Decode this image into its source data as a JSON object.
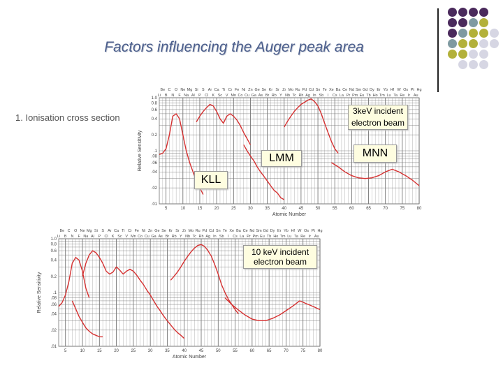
{
  "slide": {
    "title": "Factors influencing the Auger peak area",
    "subtitle": "1. Ionisation cross section"
  },
  "decor": {
    "colors": [
      "#4a2a5c",
      "#7f9aa1",
      "#b3b13a",
      "#d6d6e3"
    ],
    "dots": [
      [
        0,
        0,
        0,
        0,
        -1
      ],
      [
        0,
        0,
        1,
        2,
        -1
      ],
      [
        0,
        1,
        2,
        2,
        3
      ],
      [
        1,
        2,
        2,
        3,
        3
      ],
      [
        2,
        2,
        3,
        3,
        -1
      ],
      [
        -1,
        3,
        3,
        3,
        -1
      ]
    ]
  },
  "charts": {
    "top": {
      "annotation": "3keV incident electron beam",
      "shells": [
        "LMM",
        "MNN",
        "KLL"
      ]
    },
    "bottom": {
      "annotation": "10 keV incident electron beam"
    }
  },
  "chart_data": [
    {
      "type": "line",
      "xlabel": "Atomic Number",
      "ylabel": "Relative Sensitivity",
      "xticks": [
        "5",
        "10",
        "15",
        "20",
        "25",
        "30",
        "35",
        "40",
        "45",
        "50",
        "55",
        "60",
        "65",
        "70",
        "75",
        "80"
      ],
      "yticks": [
        ".01",
        ".02",
        ".04",
        ".06",
        ".08",
        ".1",
        "0.2",
        "0.4",
        "0.6",
        "0.8",
        "1.0"
      ],
      "yscale": "log",
      "xlim": [
        3,
        80
      ],
      "ylim": [
        0.01,
        1.0
      ],
      "elements_row1": [
        "Be",
        "C",
        "O",
        "Ne",
        "Mg",
        "Si",
        "S",
        "Ar",
        "Ca",
        "Ti",
        "Cr",
        "Fe",
        "Ni",
        "Zn",
        "Ge",
        "Se",
        "Kr",
        "Sr",
        "Zr",
        "Mo",
        "Ru",
        "Pd",
        "Cd",
        "Sn",
        "Te",
        "Xe",
        "Ba",
        "Ce",
        "Nd",
        "Sm",
        "Gd",
        "Dy",
        "Er",
        "Yb",
        "Hf",
        "W",
        "Os",
        "Pt",
        "Hg"
      ],
      "elements_row2": [
        "Li",
        "B",
        "N",
        "F",
        "Na",
        "Al",
        "P",
        "Cl",
        "K",
        "Sc",
        "V",
        "Mn",
        "Co",
        "Cu",
        "Ga",
        "As",
        "Br",
        "Rb",
        "Y",
        "Nb",
        "Tc",
        "Rh",
        "Ag",
        "In",
        "Sb",
        "I",
        "Cs",
        "La",
        "Pr",
        "Pm",
        "Eu",
        "Tb",
        "Ho",
        "Tm",
        "Lu",
        "Ta",
        "Re",
        "Ir",
        "Au"
      ],
      "series": [
        {
          "x": [
            3,
            4,
            5,
            6,
            7,
            8,
            9,
            10,
            11,
            12,
            13,
            14,
            15,
            16
          ],
          "y": [
            0.085,
            0.09,
            0.11,
            0.2,
            0.45,
            0.5,
            0.4,
            0.2,
            0.1,
            0.06,
            0.04,
            0.028,
            0.02,
            0.015
          ]
        },
        {
          "x": [
            14,
            15,
            16,
            17,
            18,
            19,
            20,
            21,
            22,
            23,
            24,
            25,
            26,
            27,
            28,
            29,
            30
          ],
          "y": [
            0.35,
            0.45,
            0.55,
            0.65,
            0.75,
            0.7,
            0.55,
            0.4,
            0.33,
            0.45,
            0.5,
            0.45,
            0.38,
            0.3,
            0.22,
            0.17,
            0.13
          ]
        },
        {
          "x": [
            28,
            29,
            30,
            31,
            32,
            33,
            34,
            35,
            36,
            37,
            38,
            39,
            40
          ],
          "y": [
            0.13,
            0.1,
            0.08,
            0.065,
            0.05,
            0.04,
            0.033,
            0.027,
            0.022,
            0.018,
            0.016,
            0.013,
            0.012
          ]
        },
        {
          "x": [
            40,
            41,
            42,
            43,
            44,
            45,
            46,
            47,
            48,
            49,
            50,
            51,
            52,
            53,
            54,
            55,
            56
          ],
          "y": [
            0.28,
            0.36,
            0.45,
            0.55,
            0.65,
            0.75,
            0.82,
            0.9,
            0.95,
            0.85,
            0.7,
            0.5,
            0.33,
            0.22,
            0.15,
            0.11,
            0.09
          ]
        },
        {
          "x": [
            54,
            56,
            58,
            60,
            62,
            64,
            66,
            68,
            70,
            72,
            74,
            76,
            78,
            80
          ],
          "y": [
            0.06,
            0.05,
            0.04,
            0.034,
            0.031,
            0.03,
            0.031,
            0.034,
            0.04,
            0.045,
            0.04,
            0.034,
            0.028,
            0.022
          ]
        }
      ]
    },
    {
      "type": "line",
      "xlabel": "Atomic Number",
      "ylabel": "Relative Sensitivity",
      "xticks": [
        "5",
        "10",
        "15",
        "20",
        "25",
        "30",
        "35",
        "40",
        "45",
        "50",
        "55",
        "60",
        "65",
        "70",
        "75",
        "80"
      ],
      "yticks": [
        ".01",
        ".02",
        ".04",
        ".06",
        ".08",
        ".1",
        "0.2",
        "0.4",
        "0.6",
        "0.8",
        "1.0"
      ],
      "yscale": "log",
      "xlim": [
        3,
        80
      ],
      "ylim": [
        0.01,
        1.0
      ],
      "elements_row1": [
        "Be",
        "C",
        "O",
        "Ne",
        "Mg",
        "Si",
        "S",
        "Ar",
        "Ca",
        "Ti",
        "Cr",
        "Fe",
        "Ni",
        "Zn",
        "Ge",
        "Se",
        "Kr",
        "Sr",
        "Zr",
        "Mo",
        "Ru",
        "Pd",
        "Cd",
        "Sn",
        "Te",
        "Xe",
        "Ba",
        "Ce",
        "Nd",
        "Sm",
        "Gd",
        "Dy",
        "Er",
        "Yb",
        "Hf",
        "W",
        "Os",
        "Pt",
        "Hg"
      ],
      "elements_row2": [
        "Li",
        "B",
        "N",
        "F",
        "Na",
        "Al",
        "P",
        "Cl",
        "K",
        "Sc",
        "V",
        "Mn",
        "Co",
        "Cu",
        "Ga",
        "As",
        "Br",
        "Rb",
        "Y",
        "Nb",
        "Tc",
        "Rh",
        "Ag",
        "In",
        "Sb",
        "I",
        "Cs",
        "La",
        "Pr",
        "Pm",
        "Eu",
        "Tb",
        "Ho",
        "Tm",
        "Lu",
        "Ta",
        "Re",
        "Ir",
        "Au"
      ],
      "series": [
        {
          "x": [
            3,
            4,
            5,
            6,
            7,
            8,
            9,
            10,
            11,
            12
          ],
          "y": [
            0.055,
            0.065,
            0.09,
            0.16,
            0.35,
            0.45,
            0.4,
            0.25,
            0.12,
            0.08
          ]
        },
        {
          "x": [
            7,
            8,
            9,
            10,
            11,
            12,
            13,
            14,
            15,
            16
          ],
          "y": [
            0.07,
            0.05,
            0.036,
            0.028,
            0.022,
            0.019,
            0.017,
            0.016,
            0.015,
            0.015
          ]
        },
        {
          "x": [
            10,
            11,
            12,
            13,
            14,
            15,
            16,
            17,
            18,
            19,
            20,
            21,
            22,
            23,
            24,
            25
          ],
          "y": [
            0.2,
            0.35,
            0.5,
            0.6,
            0.55,
            0.45,
            0.35,
            0.25,
            0.22,
            0.24,
            0.3,
            0.26,
            0.22,
            0.25,
            0.27,
            0.25
          ]
        },
        {
          "x": [
            25,
            26,
            27,
            28,
            29,
            30,
            31,
            32,
            33,
            34,
            35,
            36,
            37,
            38,
            39,
            40
          ],
          "y": [
            0.25,
            0.21,
            0.17,
            0.14,
            0.11,
            0.09,
            0.07,
            0.055,
            0.045,
            0.036,
            0.03,
            0.025,
            0.021,
            0.018,
            0.016,
            0.014
          ]
        },
        {
          "x": [
            36,
            37,
            38,
            39,
            40,
            41,
            42,
            43,
            44,
            45,
            46,
            47,
            48,
            49,
            50,
            51,
            52,
            53,
            54,
            55,
            56
          ],
          "y": [
            0.17,
            0.2,
            0.24,
            0.3,
            0.38,
            0.47,
            0.57,
            0.67,
            0.75,
            0.78,
            0.72,
            0.6,
            0.47,
            0.33,
            0.22,
            0.14,
            0.1,
            0.075,
            0.06,
            0.048,
            0.04
          ]
        },
        {
          "x": [
            52,
            54,
            56,
            58,
            60,
            62,
            64,
            66,
            68,
            70,
            72,
            74,
            76,
            78,
            80
          ],
          "y": [
            0.08,
            0.06,
            0.047,
            0.038,
            0.032,
            0.03,
            0.03,
            0.033,
            0.038,
            0.046,
            0.056,
            0.07,
            0.062,
            0.055,
            0.048
          ]
        }
      ]
    }
  ]
}
